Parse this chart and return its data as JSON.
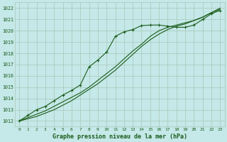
{
  "title": "Graphe pression niveau de la mer (hPa)",
  "bg_color": "#c5e8e8",
  "grid_color": "#a8c8b8",
  "line_color": "#1a5c1a",
  "marker_color": "#1a5c1a",
  "x_min": 0,
  "x_max": 23,
  "y_min": 1011.5,
  "y_max": 1022.5,
  "y_ticks": [
    1012,
    1013,
    1014,
    1015,
    1016,
    1017,
    1018,
    1019,
    1020,
    1021,
    1022
  ],
  "series1_x": [
    0,
    1,
    2,
    3,
    4,
    5,
    6,
    7,
    8,
    9,
    10,
    11,
    12,
    13,
    14,
    15,
    16,
    17,
    18,
    19,
    20,
    21,
    22,
    23
  ],
  "series1": [
    1012.0,
    1012.5,
    1013.0,
    1013.3,
    1013.8,
    1014.3,
    1014.7,
    1015.2,
    1016.8,
    1017.4,
    1018.1,
    1019.5,
    1019.9,
    1020.1,
    1020.45,
    1020.5,
    1020.5,
    1020.4,
    1020.3,
    1020.3,
    1020.5,
    1021.0,
    1021.5,
    1021.8
  ],
  "series2_x": [
    0,
    1,
    2,
    3,
    4,
    5,
    6,
    7,
    8,
    9,
    10,
    11,
    12,
    13,
    14,
    15,
    16,
    17,
    18,
    19,
    20,
    21,
    22,
    23
  ],
  "series2": [
    1012.0,
    1012.3,
    1012.6,
    1012.9,
    1013.3,
    1013.7,
    1014.1,
    1014.5,
    1015.0,
    1015.6,
    1016.2,
    1016.8,
    1017.5,
    1018.2,
    1018.8,
    1019.5,
    1020.0,
    1020.3,
    1020.5,
    1020.7,
    1020.9,
    1021.2,
    1021.6,
    1021.9
  ],
  "series3_x": [
    0,
    1,
    2,
    3,
    4,
    5,
    6,
    7,
    8,
    9,
    10,
    11,
    12,
    13,
    14,
    15,
    16,
    17,
    18,
    19,
    20,
    21,
    22,
    23
  ],
  "series3": [
    1012.0,
    1012.2,
    1012.4,
    1012.7,
    1013.0,
    1013.4,
    1013.8,
    1014.3,
    1014.8,
    1015.3,
    1015.9,
    1016.5,
    1017.2,
    1017.9,
    1018.6,
    1019.2,
    1019.7,
    1020.1,
    1020.4,
    1020.6,
    1020.9,
    1021.2,
    1021.6,
    1022.0
  ]
}
